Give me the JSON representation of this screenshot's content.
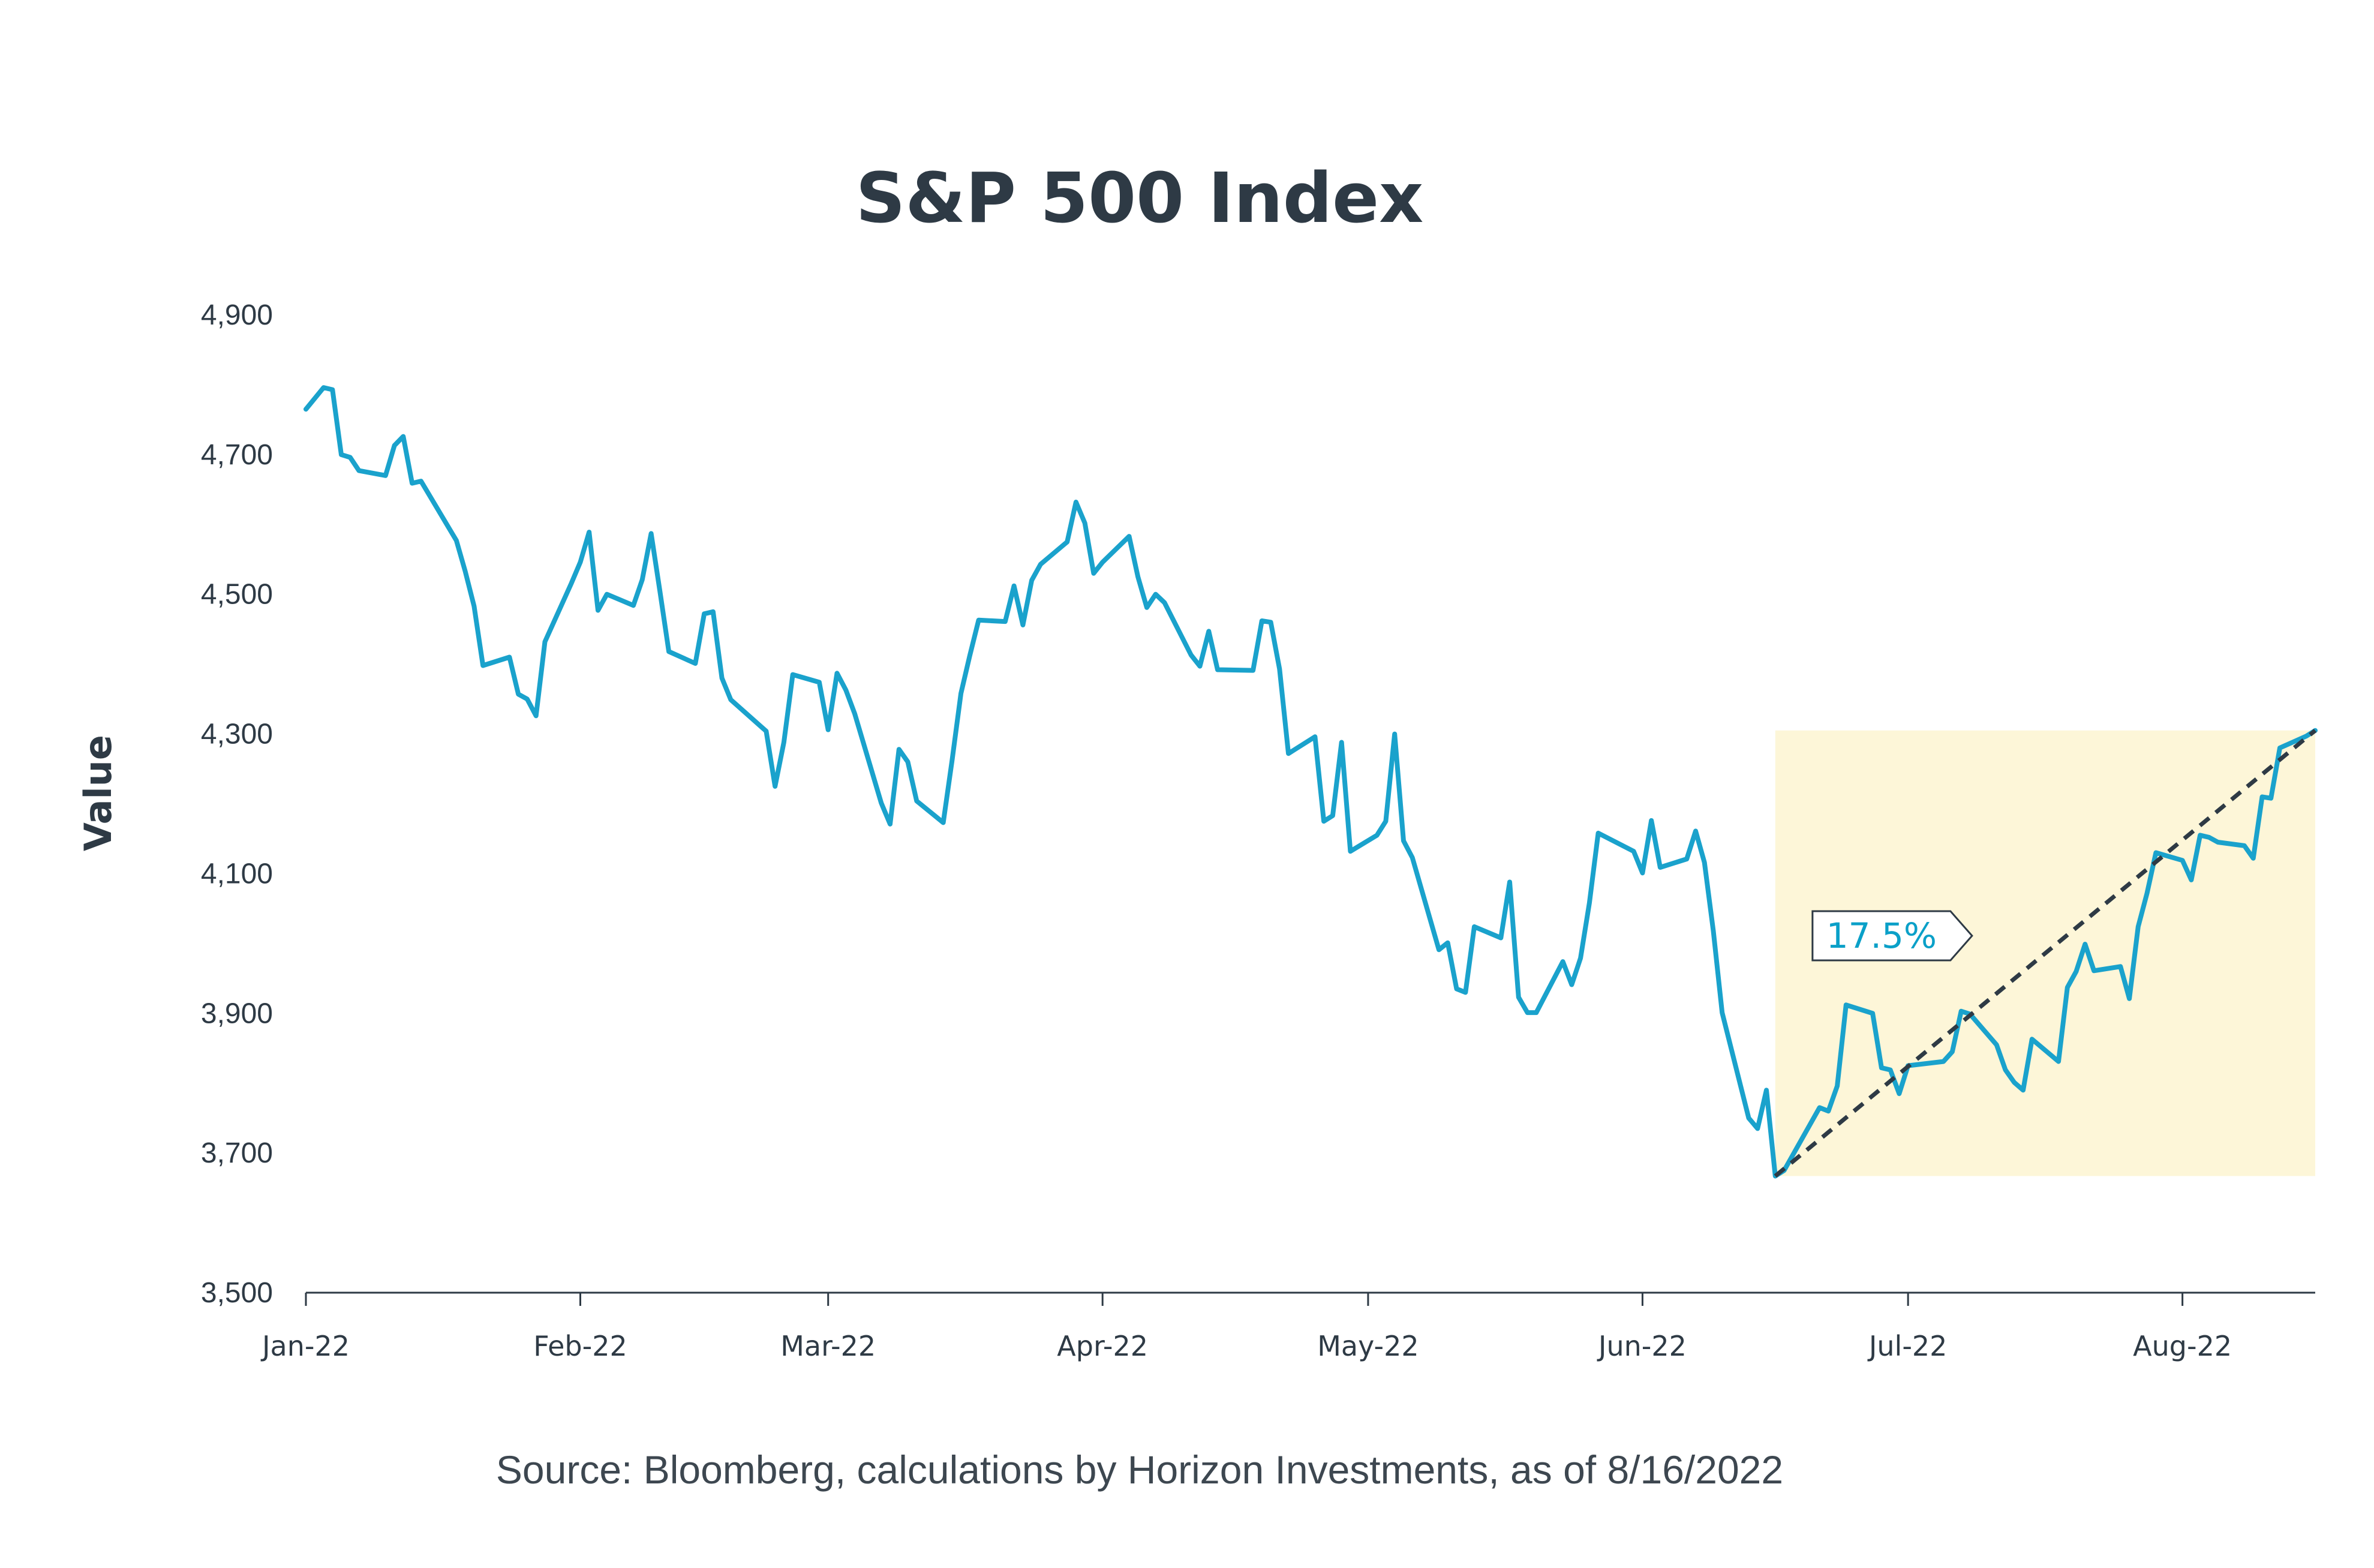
{
  "chart_data": {
    "type": "line",
    "title": "S&P 500 Index",
    "xlabel": "",
    "ylabel": "Value",
    "ylim": [
      3500,
      4900
    ],
    "yticks": [
      3500,
      3700,
      3900,
      4100,
      4300,
      4500,
      4700,
      4900
    ],
    "ytick_labels": [
      "3,500",
      "3,700",
      "3,900",
      "4,100",
      "4,300",
      "4,500",
      "4,700",
      "4,900"
    ],
    "xlim": [
      "2022-01-01",
      "2022-08-16"
    ],
    "xticks": [
      "2022-01-01",
      "2022-02-01",
      "2022-03-01",
      "2022-04-01",
      "2022-05-01",
      "2022-06-01",
      "2022-07-01",
      "2022-08-01"
    ],
    "xtick_labels": [
      "Jan-22",
      "Feb-22",
      "Mar-22",
      "Apr-22",
      "May-22",
      "Jun-22",
      "Jul-22",
      "Aug-22"
    ],
    "grid": false,
    "line_color": "#1aa2cc",
    "series": [
      {
        "values": [
          [
            "2022-01-01",
            4765
          ],
          [
            "2022-01-03",
            4796
          ],
          [
            "2022-01-04",
            4793
          ],
          [
            "2022-01-05",
            4700
          ],
          [
            "2022-01-06",
            4696
          ],
          [
            "2022-01-07",
            4677
          ],
          [
            "2022-01-10",
            4670
          ],
          [
            "2022-01-11",
            4713
          ],
          [
            "2022-01-12",
            4726
          ],
          [
            "2022-01-13",
            4659
          ],
          [
            "2022-01-14",
            4662
          ],
          [
            "2022-01-18",
            4577
          ],
          [
            "2022-01-19",
            4533
          ],
          [
            "2022-01-20",
            4483
          ],
          [
            "2022-01-21",
            4398
          ],
          [
            "2022-01-24",
            4410
          ],
          [
            "2022-01-25",
            4357
          ],
          [
            "2022-01-26",
            4350
          ],
          [
            "2022-01-27",
            4326
          ],
          [
            "2022-01-28",
            4432
          ],
          [
            "2022-01-31",
            4516
          ],
          [
            "2022-02-01",
            4546
          ],
          [
            "2022-02-02",
            4589
          ],
          [
            "2022-02-03",
            4477
          ],
          [
            "2022-02-04",
            4500
          ],
          [
            "2022-02-07",
            4484
          ],
          [
            "2022-02-08",
            4521
          ],
          [
            "2022-02-09",
            4587
          ],
          [
            "2022-02-10",
            4504
          ],
          [
            "2022-02-11",
            4418
          ],
          [
            "2022-02-14",
            4401
          ],
          [
            "2022-02-15",
            4472
          ],
          [
            "2022-02-16",
            4475
          ],
          [
            "2022-02-17",
            4380
          ],
          [
            "2022-02-18",
            4349
          ],
          [
            "2022-02-22",
            4304
          ],
          [
            "2022-02-23",
            4225
          ],
          [
            "2022-02-24",
            4288
          ],
          [
            "2022-02-25",
            4385
          ],
          [
            "2022-02-28",
            4374
          ],
          [
            "2022-03-01",
            4306
          ],
          [
            "2022-03-02",
            4387
          ],
          [
            "2022-03-03",
            4363
          ],
          [
            "2022-03-04",
            4329
          ],
          [
            "2022-03-07",
            4201
          ],
          [
            "2022-03-08",
            4171
          ],
          [
            "2022-03-09",
            4278
          ],
          [
            "2022-03-10",
            4260
          ],
          [
            "2022-03-11",
            4204
          ],
          [
            "2022-03-14",
            4173
          ],
          [
            "2022-03-15",
            4262
          ],
          [
            "2022-03-16",
            4358
          ],
          [
            "2022-03-17",
            4412
          ],
          [
            "2022-03-18",
            4463
          ],
          [
            "2022-03-21",
            4461
          ],
          [
            "2022-03-22",
            4512
          ],
          [
            "2022-03-23",
            4456
          ],
          [
            "2022-03-24",
            4520
          ],
          [
            "2022-03-25",
            4543
          ],
          [
            "2022-03-28",
            4575
          ],
          [
            "2022-03-29",
            4632
          ],
          [
            "2022-03-30",
            4602
          ],
          [
            "2022-03-31",
            4530
          ],
          [
            "2022-04-01",
            4546
          ],
          [
            "2022-04-04",
            4583
          ],
          [
            "2022-04-05",
            4525
          ],
          [
            "2022-04-06",
            4481
          ],
          [
            "2022-04-07",
            4500
          ],
          [
            "2022-04-08",
            4488
          ],
          [
            "2022-04-11",
            4413
          ],
          [
            "2022-04-12",
            4397
          ],
          [
            "2022-04-13",
            4447
          ],
          [
            "2022-04-14",
            4392
          ],
          [
            "2022-04-18",
            4391
          ],
          [
            "2022-04-19",
            4462
          ],
          [
            "2022-04-20",
            4460
          ],
          [
            "2022-04-21",
            4393
          ],
          [
            "2022-04-22",
            4272
          ],
          [
            "2022-04-25",
            4296
          ],
          [
            "2022-04-26",
            4175
          ],
          [
            "2022-04-27",
            4183
          ],
          [
            "2022-04-28",
            4288
          ],
          [
            "2022-04-29",
            4132
          ],
          [
            "2022-05-02",
            4155
          ],
          [
            "2022-05-03",
            4175
          ],
          [
            "2022-05-04",
            4300
          ],
          [
            "2022-05-05",
            4147
          ],
          [
            "2022-05-06",
            4123
          ],
          [
            "2022-05-09",
            3991
          ],
          [
            "2022-05-10",
            4001
          ],
          [
            "2022-05-11",
            3935
          ],
          [
            "2022-05-12",
            3930
          ],
          [
            "2022-05-13",
            4024
          ],
          [
            "2022-05-16",
            4008
          ],
          [
            "2022-05-17",
            4088
          ],
          [
            "2022-05-18",
            3923
          ],
          [
            "2022-05-19",
            3901
          ],
          [
            "2022-05-20",
            3901
          ],
          [
            "2022-05-23",
            3974
          ],
          [
            "2022-05-24",
            3941
          ],
          [
            "2022-05-25",
            3979
          ],
          [
            "2022-05-26",
            4058
          ],
          [
            "2022-05-27",
            4158
          ],
          [
            "2022-05-31",
            4132
          ],
          [
            "2022-06-01",
            4101
          ],
          [
            "2022-06-02",
            4176
          ],
          [
            "2022-06-03",
            4109
          ],
          [
            "2022-06-06",
            4121
          ],
          [
            "2022-06-07",
            4161
          ],
          [
            "2022-06-08",
            4116
          ],
          [
            "2022-06-09",
            4018
          ],
          [
            "2022-06-10",
            3901
          ],
          [
            "2022-06-13",
            3750
          ],
          [
            "2022-06-14",
            3735
          ],
          [
            "2022-06-15",
            3790
          ],
          [
            "2022-06-16",
            3667
          ],
          [
            "2022-06-17",
            3675
          ],
          [
            "2022-06-21",
            3765
          ],
          [
            "2022-06-22",
            3760
          ],
          [
            "2022-06-23",
            3796
          ],
          [
            "2022-06-24",
            3912
          ],
          [
            "2022-06-27",
            3900
          ],
          [
            "2022-06-28",
            3822
          ],
          [
            "2022-06-29",
            3819
          ],
          [
            "2022-06-30",
            3785
          ],
          [
            "2022-07-01",
            3825
          ],
          [
            "2022-07-05",
            3831
          ],
          [
            "2022-07-06",
            3845
          ],
          [
            "2022-07-07",
            3903
          ],
          [
            "2022-07-08",
            3899
          ],
          [
            "2022-07-11",
            3855
          ],
          [
            "2022-07-12",
            3819
          ],
          [
            "2022-07-13",
            3801
          ],
          [
            "2022-07-14",
            3790
          ],
          [
            "2022-07-15",
            3863
          ],
          [
            "2022-07-18",
            3831
          ],
          [
            "2022-07-19",
            3937
          ],
          [
            "2022-07-20",
            3960
          ],
          [
            "2022-07-21",
            3999
          ],
          [
            "2022-07-22",
            3961
          ],
          [
            "2022-07-25",
            3967
          ],
          [
            "2022-07-26",
            3921
          ],
          [
            "2022-07-27",
            4024
          ],
          [
            "2022-07-28",
            4072
          ],
          [
            "2022-07-29",
            4130
          ],
          [
            "2022-08-01",
            4119
          ],
          [
            "2022-08-02",
            4091
          ],
          [
            "2022-08-03",
            4155
          ],
          [
            "2022-08-04",
            4152
          ],
          [
            "2022-08-05",
            4145
          ],
          [
            "2022-08-08",
            4140
          ],
          [
            "2022-08-09",
            4122
          ],
          [
            "2022-08-10",
            4210
          ],
          [
            "2022-08-11",
            4208
          ],
          [
            "2022-08-12",
            4280
          ],
          [
            "2022-08-15",
            4297
          ],
          [
            "2022-08-16",
            4305
          ]
        ]
      }
    ],
    "highlight_region": {
      "x": [
        "2022-06-16",
        "2022-08-16"
      ],
      "y": [
        3667,
        4305
      ],
      "color": "#fdf6d8"
    },
    "trend_line": {
      "from": [
        "2022-06-16",
        3667
      ],
      "to": [
        "2022-08-16",
        4305
      ],
      "color": "#2e3a45",
      "style": "dashed"
    },
    "annotations": [
      {
        "text": "17.5%",
        "x": "2022-06-28",
        "y": 4011
      }
    ]
  },
  "source": "Source: Bloomberg, calculations by Horizon Investments, as of 8/16/2022"
}
